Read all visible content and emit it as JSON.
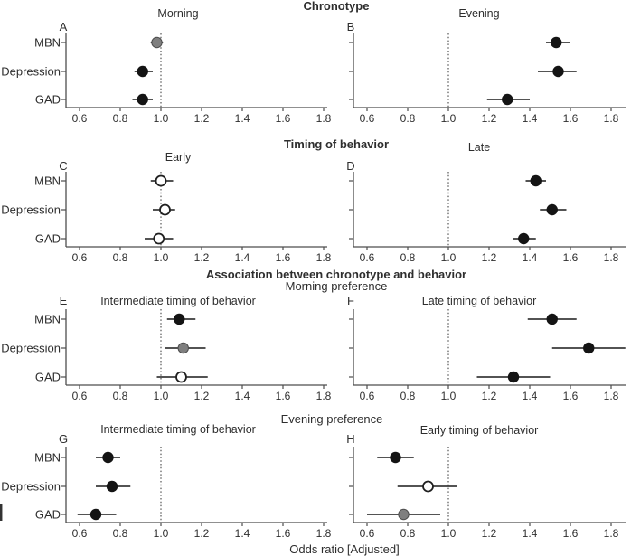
{
  "chart_data": {
    "type": "scatter",
    "subtype": "forest-plot",
    "xlabel": "Odds ratio [Adjusted]",
    "categories": [
      "MBN",
      "Depression",
      "GAD"
    ],
    "x_ticks": [
      0.6,
      0.8,
      1.0,
      1.2,
      1.4,
      1.6,
      1.8
    ],
    "x_tick_labels": [
      "0.6",
      "0.8",
      "1.0",
      "1.2",
      "1.4",
      "1.6",
      "1.8"
    ],
    "x_range": [
      0.53,
      1.87
    ],
    "reference_line": 1.0,
    "grid": false,
    "legend": null,
    "sections": [
      {
        "title": "Chronotype",
        "bold": true,
        "subtitle": null
      },
      {
        "title": "Timing of behavior",
        "bold": true,
        "subtitle": null
      },
      {
        "title": "Association between chronotype and behavior",
        "bold": true,
        "subtitle": "Morning preference"
      },
      {
        "title": null,
        "bold": false,
        "subtitle": "Evening preference"
      }
    ],
    "panels": [
      {
        "letter": "A",
        "title": "Morning",
        "row": 0,
        "col": 0,
        "points": [
          {
            "category": "MBN",
            "or": 0.98,
            "ci_low": 0.95,
            "ci_high": 1.01,
            "marker": "gray"
          },
          {
            "category": "Depression",
            "or": 0.91,
            "ci_low": 0.87,
            "ci_high": 0.96,
            "marker": "black"
          },
          {
            "category": "GAD",
            "or": 0.91,
            "ci_low": 0.86,
            "ci_high": 0.96,
            "marker": "black"
          }
        ]
      },
      {
        "letter": "B",
        "title": "Evening",
        "row": 0,
        "col": 1,
        "points": [
          {
            "category": "MBN",
            "or": 1.53,
            "ci_low": 1.48,
            "ci_high": 1.6,
            "marker": "black"
          },
          {
            "category": "Depression",
            "or": 1.54,
            "ci_low": 1.44,
            "ci_high": 1.63,
            "marker": "black"
          },
          {
            "category": "GAD",
            "or": 1.29,
            "ci_low": 1.19,
            "ci_high": 1.4,
            "marker": "black"
          }
        ]
      },
      {
        "letter": "C",
        "title": "Early",
        "row": 1,
        "col": 0,
        "points": [
          {
            "category": "MBN",
            "or": 1.0,
            "ci_low": 0.95,
            "ci_high": 1.06,
            "marker": "open"
          },
          {
            "category": "Depression",
            "or": 1.02,
            "ci_low": 0.96,
            "ci_high": 1.07,
            "marker": "open"
          },
          {
            "category": "GAD",
            "or": 0.99,
            "ci_low": 0.92,
            "ci_high": 1.06,
            "marker": "open"
          }
        ]
      },
      {
        "letter": "D",
        "title": "Late",
        "row": 1,
        "col": 1,
        "points": [
          {
            "category": "MBN",
            "or": 1.43,
            "ci_low": 1.38,
            "ci_high": 1.48,
            "marker": "black"
          },
          {
            "category": "Depression",
            "or": 1.51,
            "ci_low": 1.45,
            "ci_high": 1.58,
            "marker": "black"
          },
          {
            "category": "GAD",
            "or": 1.37,
            "ci_low": 1.32,
            "ci_high": 1.43,
            "marker": "black"
          }
        ]
      },
      {
        "letter": "E",
        "title": "Intermediate timing of behavior",
        "row": 2,
        "col": 0,
        "points": [
          {
            "category": "MBN",
            "or": 1.09,
            "ci_low": 1.03,
            "ci_high": 1.17,
            "marker": "black"
          },
          {
            "category": "Depression",
            "or": 1.11,
            "ci_low": 1.02,
            "ci_high": 1.22,
            "marker": "gray"
          },
          {
            "category": "GAD",
            "or": 1.1,
            "ci_low": 0.98,
            "ci_high": 1.23,
            "marker": "open"
          }
        ]
      },
      {
        "letter": "F",
        "title": "Late timing of behavior",
        "row": 2,
        "col": 1,
        "points": [
          {
            "category": "MBN",
            "or": 1.51,
            "ci_low": 1.39,
            "ci_high": 1.63,
            "marker": "black"
          },
          {
            "category": "Depression",
            "or": 1.69,
            "ci_low": 1.51,
            "ci_high": 1.87,
            "marker": "black"
          },
          {
            "category": "GAD",
            "or": 1.32,
            "ci_low": 1.14,
            "ci_high": 1.5,
            "marker": "black"
          }
        ]
      },
      {
        "letter": "G",
        "title": "Intermediate timing of behavior",
        "row": 3,
        "col": 0,
        "points": [
          {
            "category": "MBN",
            "or": 0.74,
            "ci_low": 0.68,
            "ci_high": 0.8,
            "marker": "black"
          },
          {
            "category": "Depression",
            "or": 0.76,
            "ci_low": 0.68,
            "ci_high": 0.85,
            "marker": "black"
          },
          {
            "category": "GAD",
            "or": 0.68,
            "ci_low": 0.59,
            "ci_high": 0.78,
            "marker": "black"
          }
        ]
      },
      {
        "letter": "H",
        "title": "Early timing of behavior",
        "row": 3,
        "col": 1,
        "points": [
          {
            "category": "MBN",
            "or": 0.74,
            "ci_low": 0.65,
            "ci_high": 0.83,
            "marker": "black"
          },
          {
            "category": "Depression",
            "or": 0.9,
            "ci_low": 0.75,
            "ci_high": 1.04,
            "marker": "open"
          },
          {
            "category": "GAD",
            "or": 0.78,
            "ci_low": 0.6,
            "ci_high": 0.96,
            "marker": "gray"
          }
        ]
      }
    ],
    "marker_styles": {
      "black": {
        "fill": "#141414",
        "stroke": "#141414",
        "stroke_width": 1
      },
      "gray": {
        "fill": "#7f7f7f",
        "stroke": "#4d4d4d",
        "stroke_width": 1
      },
      "open": {
        "fill": "#ffffff",
        "stroke": "#1f1f1f",
        "stroke_width": 1.8
      }
    },
    "colors": {
      "background": "#ffffff",
      "axis": "#4d4d4d",
      "text": "#2e2e2e",
      "whisker": "#1a1a1a",
      "reference_line": "#333333"
    }
  }
}
